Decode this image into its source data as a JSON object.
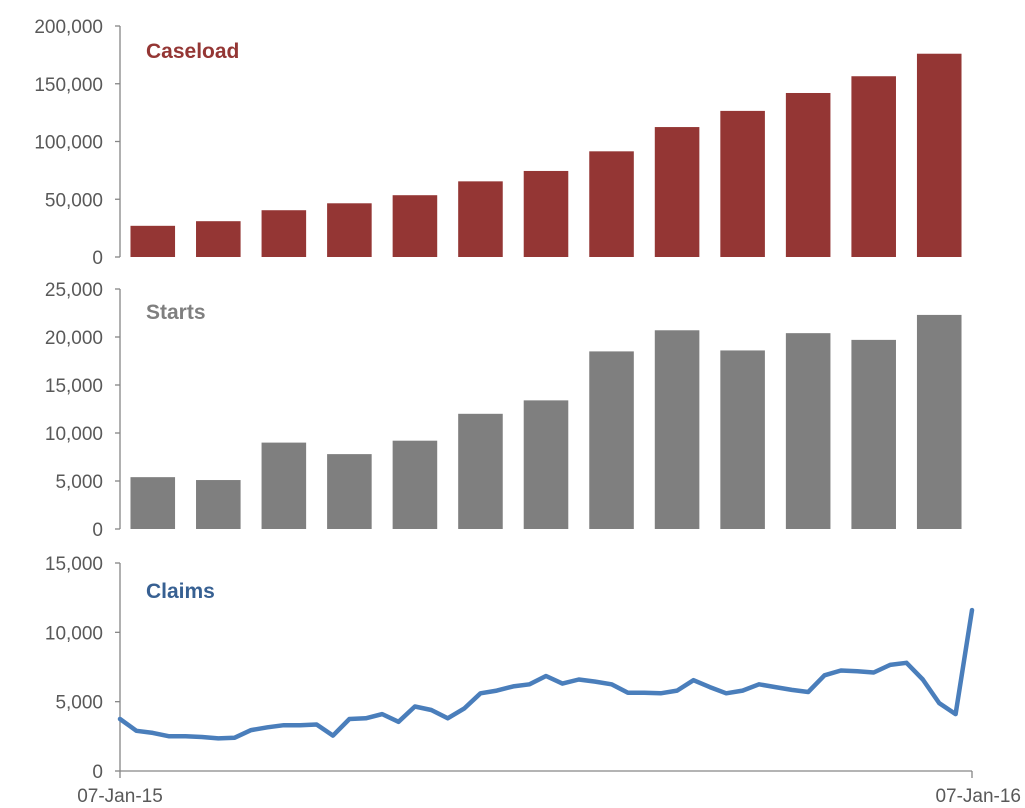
{
  "chart_data": [
    {
      "type": "bar",
      "title": "Caseload",
      "title_color": "#943634",
      "bar_color": "#943634",
      "values": [
        27000,
        31000,
        40500,
        46500,
        53500,
        65500,
        74500,
        91500,
        112500,
        126500,
        142000,
        156500,
        176000
      ],
      "ylim": [
        0,
        200000
      ],
      "y_ticks": [
        "0",
        "50,000",
        "100,000",
        "150,000",
        "200,000"
      ],
      "grid": false
    },
    {
      "type": "bar",
      "title": "Starts",
      "title_color": "#7f7f7f",
      "bar_color": "#7f7f7f",
      "values": [
        5400,
        5100,
        9000,
        7800,
        9200,
        12000,
        13400,
        18500,
        20700,
        18600,
        20400,
        19700,
        22300
      ],
      "ylim": [
        0,
        25000
      ],
      "y_ticks": [
        "0",
        "5,000",
        "10,000",
        "15,000",
        "20,000",
        "25,000"
      ],
      "grid": false
    },
    {
      "type": "line",
      "title": "Claims",
      "title_color": "#376092",
      "line_color": "#4a7ebb",
      "values": [
        3750,
        2900,
        2750,
        2500,
        2500,
        2450,
        2350,
        2400,
        2950,
        3150,
        3300,
        3300,
        3350,
        2550,
        3750,
        3800,
        4100,
        3550,
        4650,
        4400,
        3800,
        4500,
        5600,
        5800,
        6100,
        6250,
        6850,
        6300,
        6600,
        6450,
        6250,
        5650,
        5650,
        5600,
        5800,
        6550,
        6050,
        5600,
        5800,
        6250,
        6050,
        5850,
        5700,
        6900,
        7250,
        7200,
        7100,
        7650,
        7800,
        6600,
        4900,
        4100,
        11600
      ],
      "ylim": [
        0,
        15000
      ],
      "y_ticks": [
        "0",
        "5,000",
        "10,000",
        "15,000"
      ],
      "x_range": [
        "07-Jan-15",
        "07-Jan-16"
      ],
      "x_tick_labels": [
        "07-Jan-15",
        "07-Jan-16"
      ],
      "grid": false
    }
  ]
}
